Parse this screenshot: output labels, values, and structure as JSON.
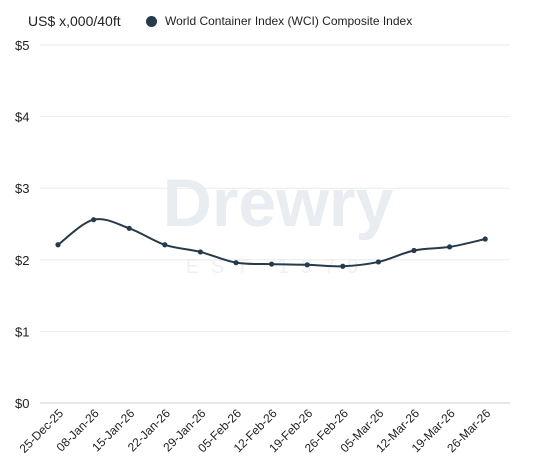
{
  "chart_data": {
    "type": "line",
    "unit_label": "US$ x,000/40ft",
    "legend": [
      {
        "name": "World Container Index (WCI) Composite Index",
        "color": "#263a4b"
      }
    ],
    "watermark": {
      "text": "Drewry",
      "subtext": "EST 1970"
    },
    "y_ticks": [
      "$0",
      "$1",
      "$2",
      "$3",
      "$4",
      "$5"
    ],
    "ylim": [
      0,
      5
    ],
    "x": [
      "25-Dec-25",
      "08-Jan-26",
      "15-Jan-26",
      "22-Jan-26",
      "29-Jan-26",
      "05-Feb-26",
      "12-Feb-26",
      "19-Feb-26",
      "26-Feb-26",
      "05-Mar-26",
      "12-Mar-26",
      "19-Mar-26",
      "26-Mar-26"
    ],
    "series": [
      {
        "name": "World Container Index (WCI) Composite Index",
        "color": "#263a4b",
        "values": [
          2.21,
          2.56,
          2.44,
          2.21,
          2.11,
          1.96,
          1.94,
          1.93,
          1.91,
          1.97,
          2.13,
          2.18,
          2.29
        ]
      }
    ],
    "grid": true,
    "legend_position": "top"
  }
}
